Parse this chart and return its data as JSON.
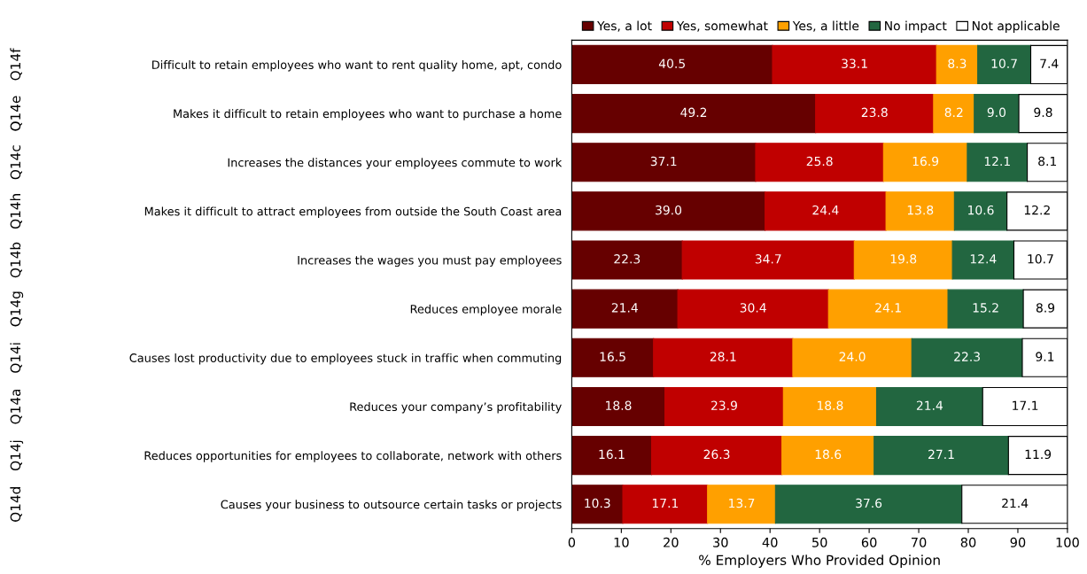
{
  "chart_data": {
    "type": "bar",
    "orientation": "horizontal",
    "stacked": true,
    "xlabel": "% Employers Who Provided Opinion",
    "value_labels": [
      [
        "40.5",
        "49.2",
        "37.1",
        "39.0",
        "22.3",
        "21.4",
        "16.5",
        "18.8",
        "16.1",
        "10.3"
      ],
      [
        "33.1",
        "23.8",
        "25.8",
        "24.4",
        "34.7",
        "30.4",
        "28.1",
        "23.9",
        "26.3",
        "17.1"
      ],
      [
        "8.3",
        "8.2",
        "16.9",
        "13.8",
        "19.8",
        "24.1",
        "24.0",
        "18.8",
        "18.6",
        "13.7"
      ],
      [
        "10.7",
        "9.0",
        "12.1",
        "10.6",
        "12.4",
        "15.2",
        "22.3",
        "21.4",
        "27.1",
        "37.6"
      ],
      [
        "7.4",
        "9.8",
        "8.1",
        "12.2",
        "10.7",
        "8.9",
        "9.1",
        "17.1",
        "11.9",
        "21.4"
      ]
    ],
    "categories": [
      "Difficult to retain employees who want to rent quality home, apt, condo",
      "Makes it difficult to retain employees who want to purchase a home",
      "Increases the distances your employees commute to work",
      "Makes it difficult to attract employees from outside the South Coast area",
      "Increases the wages you must pay employees",
      "Reduces employee morale",
      "Causes lost productivity due to employees stuck in traffic when commuting",
      "Reduces your company’s profitability",
      "Reduces opportunities for employees to collaborate, network with others",
      "Causes your business to outsource certain tasks or projects"
    ],
    "annotations": [
      "Q14f",
      "Q14e",
      "Q14c",
      "Q14h",
      "Q14b",
      "Q14g",
      "Q14i",
      "Q14a",
      "Q14j",
      "Q14d"
    ],
    "series": [
      {
        "name": "Yes, a lot",
        "color": "#660000",
        "values": [
          40.5,
          49.2,
          37.1,
          39.0,
          22.3,
          21.4,
          16.5,
          18.8,
          16.1,
          10.3
        ]
      },
      {
        "name": "Yes, somewhat",
        "color": "#c00000",
        "values": [
          33.1,
          23.8,
          25.8,
          24.4,
          34.7,
          30.4,
          28.1,
          23.9,
          26.3,
          17.1
        ]
      },
      {
        "name": "Yes, a little",
        "color": "#ffa000",
        "values": [
          8.3,
          8.2,
          16.9,
          13.8,
          19.8,
          24.1,
          24.0,
          18.8,
          18.6,
          13.7
        ]
      },
      {
        "name": "No impact",
        "color": "#226640",
        "values": [
          10.7,
          9.0,
          12.1,
          10.6,
          12.4,
          15.2,
          22.3,
          21.4,
          27.1,
          37.6
        ]
      },
      {
        "name": "Not applicable",
        "color": "#ffffff",
        "values": [
          7.4,
          9.8,
          8.1,
          12.2,
          10.7,
          8.9,
          9.1,
          17.1,
          11.9,
          21.4
        ]
      }
    ],
    "xlim": [
      0,
      100
    ],
    "xticks": [
      0,
      10,
      20,
      30,
      40,
      50,
      60,
      70,
      80,
      90,
      100
    ],
    "legend": "top right",
    "grid": false
  }
}
